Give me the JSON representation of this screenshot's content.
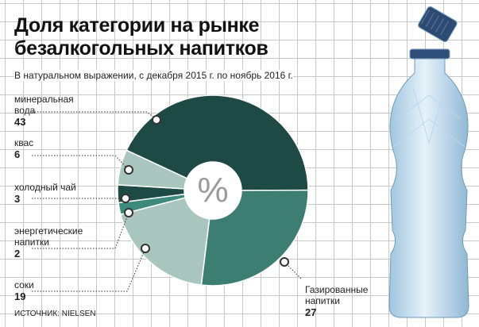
{
  "chart_data": {
    "type": "donut",
    "title": "Доля категории на рынке безалкогольных напитков",
    "subtitle": "В натуральном выражении, с декабря 2015 г. по ноябрь 2016 г.",
    "center_label": "%",
    "source": "ИСТОЧНИК: NIELSEN",
    "categories": [
      "минеральная вода",
      "Газированные напитки",
      "соки",
      "энергетические напитки",
      "холодный чай",
      "квас"
    ],
    "values": [
      43,
      27,
      19,
      2,
      3,
      6
    ],
    "colors": [
      "#1d4a45",
      "#3c7e71",
      "#a9c6be",
      "#3c8a7c",
      "#1d4a45",
      "#a9c6be"
    ]
  }
}
